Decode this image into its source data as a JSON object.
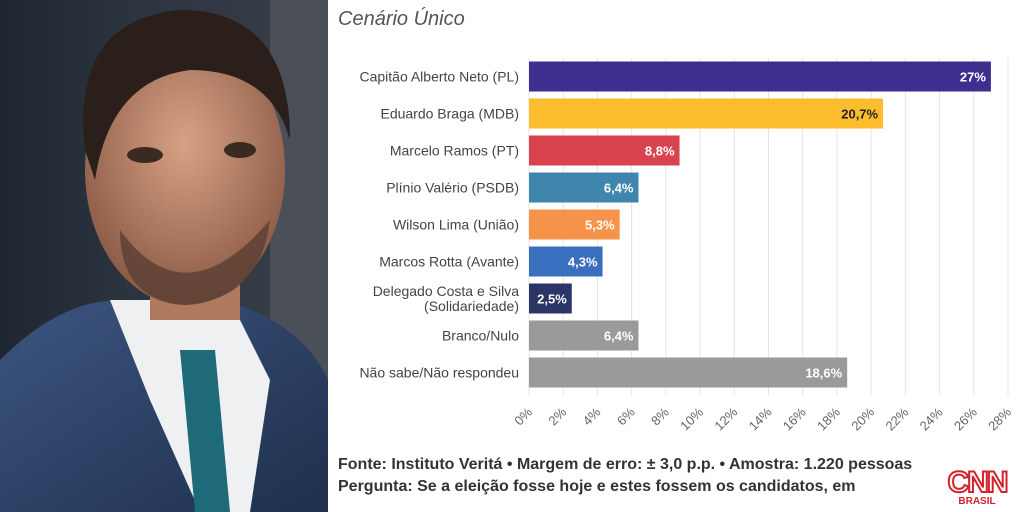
{
  "chart_data": {
    "type": "bar",
    "orientation": "horizontal",
    "title": "Cenário Único",
    "categories": [
      "Capitão Alberto Neto (PL)",
      "Eduardo Braga (MDB)",
      "Marcelo Ramos (PT)",
      "Plínio Valério (PSDB)",
      "Wilson Lima (União)",
      "Marcos Rotta (Avante)",
      "Delegado Costa e Silva (Solidariedade)",
      "Branco/Nulo",
      "Não sabe/Não respondeu"
    ],
    "values": [
      27,
      20.7,
      8.8,
      6.4,
      5.3,
      4.3,
      2.5,
      6.4,
      18.6
    ],
    "data_labels": [
      "27%",
      "20,7%",
      "8,8%",
      "6,4%",
      "5,3%",
      "4,3%",
      "2,5%",
      "6,4%",
      "18,6%"
    ],
    "colors": [
      "#3d2e8f",
      "#fbbd2e",
      "#d8434e",
      "#3f86ad",
      "#f6934a",
      "#3a6fbf",
      "#2b3566",
      "#9a9a9a",
      "#9a9a9a"
    ],
    "label_colors": [
      "#ffffff",
      "#222222",
      "#ffffff",
      "#ffffff",
      "#ffffff",
      "#ffffff",
      "#ffffff",
      "#ffffff",
      "#ffffff"
    ],
    "xlim": [
      0,
      28
    ],
    "xticks": [
      0,
      2,
      4,
      6,
      8,
      10,
      12,
      14,
      16,
      18,
      20,
      22,
      24,
      26,
      28
    ],
    "xtick_labels": [
      "0%",
      "2%",
      "4%",
      "6%",
      "8%",
      "10%",
      "12%",
      "14%",
      "16%",
      "18%",
      "20%",
      "22%",
      "24%",
      "26%",
      "28%"
    ],
    "grid": true,
    "xlabel": "",
    "ylabel": ""
  },
  "footer": {
    "source": "Fonte: Instituto Veritá • Margem de erro: ± 3,0 p.p. • Amostra: 1.220 pessoas",
    "question": "Pergunta: Se a eleição fosse hoje e estes fossem os candidatos, em"
  },
  "logo": {
    "brand": "CNN",
    "sub": "BRASIL"
  }
}
